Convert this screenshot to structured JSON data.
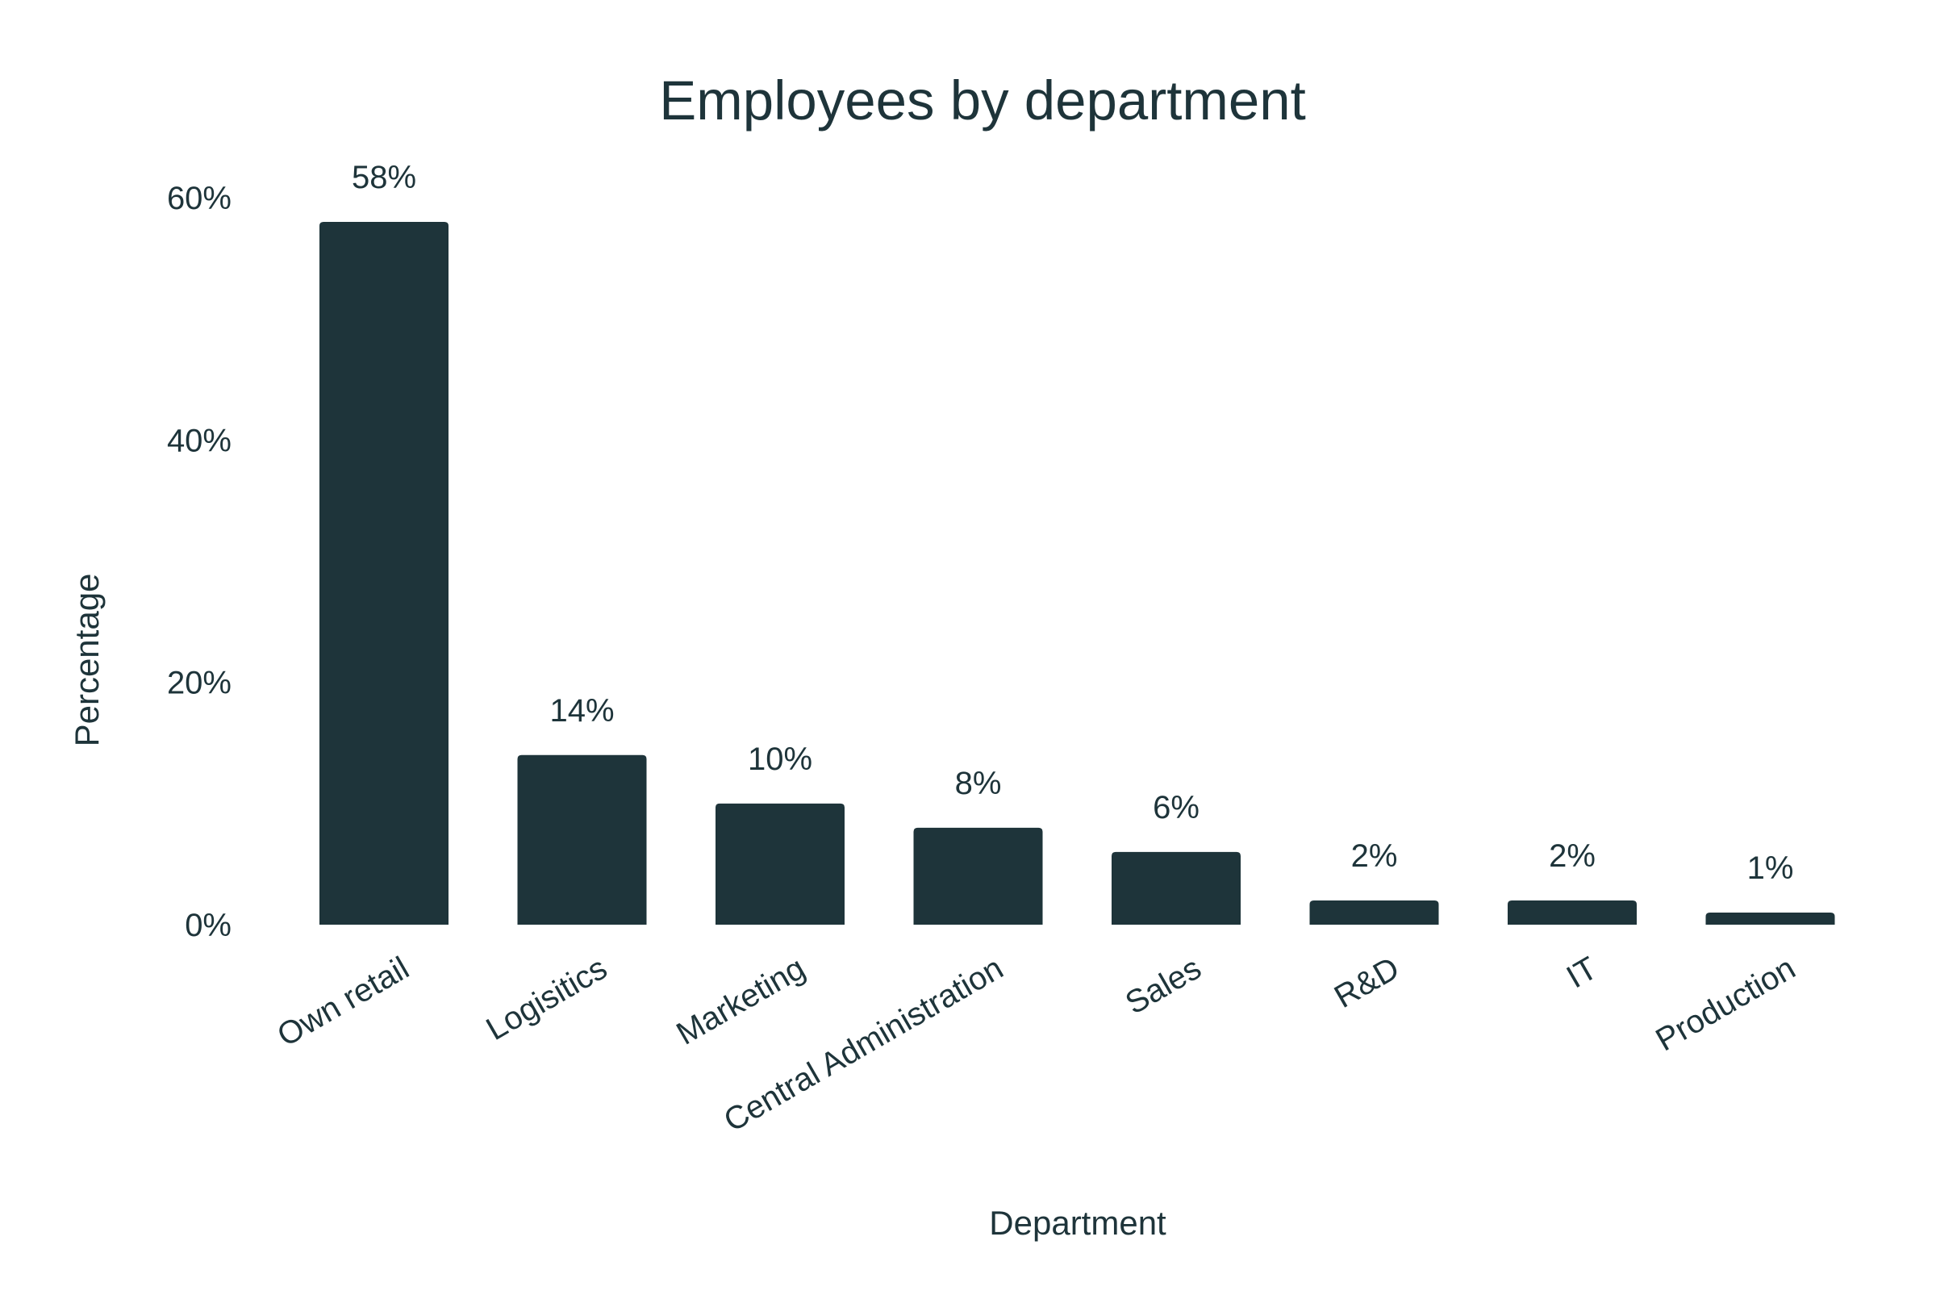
{
  "chart_data": {
    "type": "bar",
    "title": "Employees by department",
    "xlabel": "Department",
    "ylabel": "Percentage",
    "categories": [
      "Own retail",
      "Logisitics",
      "Marketing",
      "Central Administration",
      "Sales",
      "R&D",
      "IT",
      "Production"
    ],
    "values": [
      58,
      14,
      10,
      8,
      6,
      2,
      2,
      1
    ],
    "value_labels": [
      "58%",
      "14%",
      "10%",
      "8%",
      "6%",
      "2%",
      "2%",
      "1%"
    ],
    "ylim": [
      0,
      60
    ],
    "yticks": [
      0,
      20,
      40,
      60
    ],
    "ytick_labels": [
      "0%",
      "20%",
      "40%",
      "60%"
    ],
    "grid": false,
    "legend": "none",
    "colors": {
      "bar": "#1e343a",
      "text": "#1e343a"
    }
  }
}
